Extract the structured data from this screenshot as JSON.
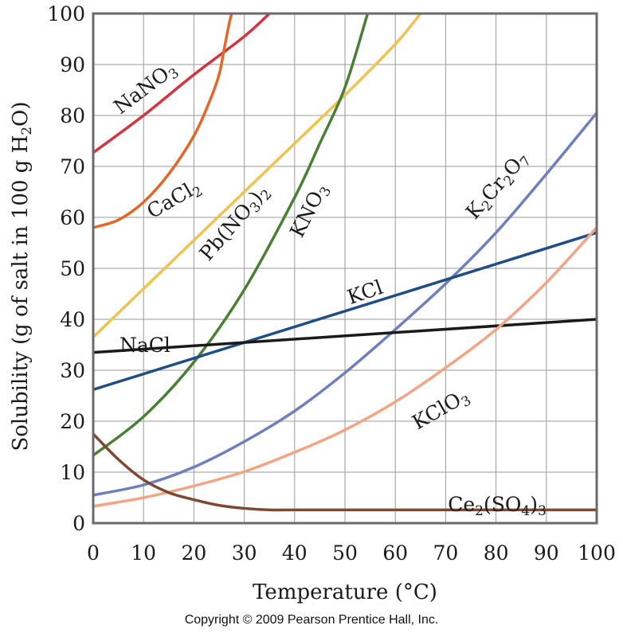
{
  "chart_data": {
    "type": "line",
    "title": "",
    "xlabel": "Temperature (°C)",
    "ylabel_parts": [
      "Solubility (g of salt in 100 g H",
      "2",
      "O)"
    ],
    "xlim": [
      0,
      100
    ],
    "ylim": [
      0,
      100
    ],
    "x_ticks": [
      0,
      10,
      20,
      30,
      40,
      50,
      60,
      70,
      80,
      90,
      100
    ],
    "y_ticks": [
      0,
      10,
      20,
      30,
      40,
      50,
      60,
      70,
      80,
      90,
      100
    ],
    "grid": true,
    "series": [
      {
        "name": "NaNO3",
        "label_parts": [
          [
            "NaNO",
            ""
          ],
          [
            "3",
            "sub"
          ]
        ],
        "color": "#d2353f",
        "points": [
          [
            0,
            72.7
          ],
          [
            10,
            80
          ],
          [
            20,
            88
          ],
          [
            30,
            95.5
          ],
          [
            35,
            100
          ]
        ]
      },
      {
        "name": "CaCl2",
        "label_parts": [
          [
            "CaCl",
            ""
          ],
          [
            "2",
            "sub"
          ]
        ],
        "color": "#e0692a",
        "points": [
          [
            0,
            58
          ],
          [
            5,
            59.5
          ],
          [
            10,
            63
          ],
          [
            15,
            68.5
          ],
          [
            20,
            76
          ],
          [
            23,
            82.5
          ],
          [
            25,
            88
          ],
          [
            26,
            93
          ],
          [
            27,
            98
          ],
          [
            27.5,
            100
          ]
        ]
      },
      {
        "name": "Pb(NO3)2",
        "label_parts": [
          [
            "Pb(NO",
            ""
          ],
          [
            "3",
            "sub"
          ],
          [
            ")",
            ""
          ],
          [
            "2",
            "sub"
          ]
        ],
        "color": "#efc352",
        "points": [
          [
            0,
            36.5
          ],
          [
            10,
            46
          ],
          [
            20,
            55.5
          ],
          [
            30,
            65
          ],
          [
            40,
            74.5
          ],
          [
            50,
            84
          ],
          [
            60,
            94
          ],
          [
            65,
            100
          ]
        ]
      },
      {
        "name": "KNO3",
        "label_parts": [
          [
            "KNO",
            ""
          ],
          [
            "3",
            "sub"
          ]
        ],
        "color": "#4a7f35",
        "points": [
          [
            0,
            13.3
          ],
          [
            10,
            20.9
          ],
          [
            20,
            31.6
          ],
          [
            30,
            45.8
          ],
          [
            40,
            63.9
          ],
          [
            45,
            74.5
          ],
          [
            50,
            85.5
          ],
          [
            54.5,
            100
          ]
        ]
      },
      {
        "name": "K2Cr2O7",
        "label_parts": [
          [
            "K",
            ""
          ],
          [
            "2",
            "sub"
          ],
          [
            "Cr",
            ""
          ],
          [
            "2",
            "sub"
          ],
          [
            "O",
            ""
          ],
          [
            "7",
            "sub"
          ]
        ],
        "color": "#6f7fbd",
        "points": [
          [
            0,
            5.5
          ],
          [
            10,
            7.5
          ],
          [
            20,
            11
          ],
          [
            30,
            16
          ],
          [
            40,
            22
          ],
          [
            50,
            29.5
          ],
          [
            60,
            38
          ],
          [
            70,
            47
          ],
          [
            80,
            57
          ],
          [
            90,
            68.5
          ],
          [
            100,
            80.5
          ]
        ]
      },
      {
        "name": "KCl",
        "label_parts": [
          [
            "KCl",
            ""
          ]
        ],
        "color": "#1f4e85",
        "points": [
          [
            0,
            26.2
          ],
          [
            100,
            57
          ]
        ]
      },
      {
        "name": "NaCl",
        "label_parts": [
          [
            "NaCl",
            ""
          ]
        ],
        "color": "#1a1a1a",
        "points": [
          [
            0,
            33.5
          ],
          [
            100,
            40
          ]
        ]
      },
      {
        "name": "KClO3",
        "label_parts": [
          [
            "KClO",
            ""
          ],
          [
            "3",
            "sub"
          ]
        ],
        "color": "#f2a585",
        "points": [
          [
            0,
            3.3
          ],
          [
            10,
            5
          ],
          [
            20,
            7.3
          ],
          [
            30,
            10.1
          ],
          [
            40,
            13.9
          ],
          [
            50,
            18.3
          ],
          [
            60,
            23.8
          ],
          [
            70,
            30.5
          ],
          [
            80,
            38
          ],
          [
            90,
            47.2
          ],
          [
            100,
            58
          ]
        ]
      },
      {
        "name": "Ce2(SO4)3",
        "label_parts": [
          [
            "Ce",
            ""
          ],
          [
            "2",
            "sub"
          ],
          [
            "(SO",
            ""
          ],
          [
            "4",
            "sub"
          ],
          [
            ")",
            ""
          ],
          [
            "3",
            "sub"
          ]
        ],
        "color": "#7c4a33",
        "points": [
          [
            0,
            17.5
          ],
          [
            5,
            12.5
          ],
          [
            10,
            8.5
          ],
          [
            15,
            6
          ],
          [
            20,
            4.6
          ],
          [
            25,
            3.5
          ],
          [
            30,
            2.9
          ],
          [
            35,
            2.6
          ],
          [
            40,
            2.6
          ],
          [
            60,
            2.6
          ],
          [
            80,
            2.6
          ],
          [
            100,
            2.6
          ]
        ]
      }
    ]
  },
  "footer": {
    "copyright": "Copyright © 2009 Pearson Prentice Hall, Inc."
  }
}
